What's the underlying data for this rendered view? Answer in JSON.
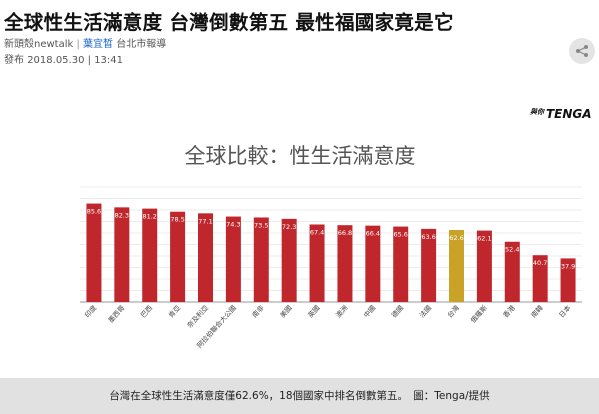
{
  "article": {
    "headline": "全球性生活滿意度 台灣倒數第五 最性福國家竟是它",
    "source": "新頭殼newtalk",
    "separator": "|",
    "author": "葉宜晳",
    "location": "台北市報導",
    "published_label": "發布",
    "published_datetime": "2018.05.30 | 13:41",
    "share_icon": "share-icon"
  },
  "brand": {
    "prefix": "與你",
    "name": "TENGA"
  },
  "caption": "台灣在全球性生活滿意度僅62.6%，18個國家中排名倒數第五。　圖：Tenga/提供",
  "colors": {
    "bar": "#c0272d",
    "highlight": "#c9a227",
    "title": "#555555",
    "grid": "#e6e6e6"
  },
  "chart_data": {
    "type": "bar",
    "title": "全球比較：性生活滿意度",
    "categories": [
      "印度",
      "墨西哥",
      "巴西",
      "肯亞",
      "奈及利亞",
      "阿拉伯聯合大公國",
      "南非",
      "美國",
      "英國",
      "澳洲",
      "中國",
      "德國",
      "法國",
      "台灣",
      "俄羅斯",
      "香港",
      "南韓",
      "日本"
    ],
    "values": [
      85.6,
      82.3,
      81.2,
      78.5,
      77.1,
      74.3,
      73.5,
      72.3,
      67.4,
      66.8,
      66.4,
      65.6,
      63.6,
      62.6,
      62.1,
      52.4,
      40.7,
      37.9
    ],
    "highlight": "台灣",
    "ylim": [
      0,
      100
    ],
    "grid": true,
    "legend": false
  }
}
